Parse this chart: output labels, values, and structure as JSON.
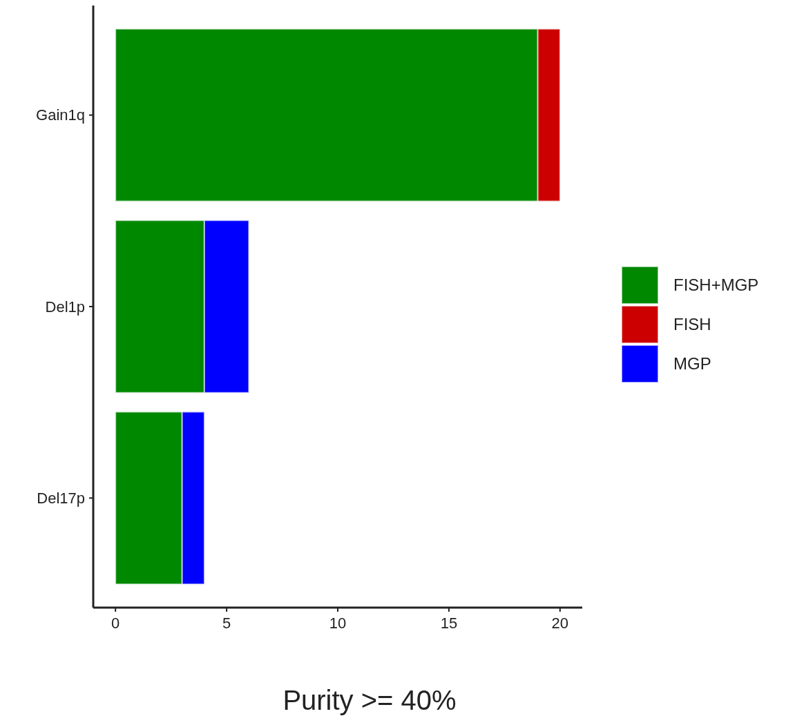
{
  "chart_data": {
    "type": "bar",
    "orientation": "horizontal",
    "stacked": true,
    "categories": [
      "Gain1q",
      "Del1p",
      "Del17p"
    ],
    "series": [
      {
        "name": "FISH+MGP",
        "color": "#008800",
        "values": [
          19,
          4,
          3
        ]
      },
      {
        "name": "FISH",
        "color": "#cc0000",
        "values": [
          1,
          0,
          0
        ]
      },
      {
        "name": "MGP",
        "color": "#0000ff",
        "values": [
          0,
          2,
          1
        ]
      }
    ],
    "xlim": [
      -1,
      21
    ],
    "xticks": [
      0,
      5,
      10,
      15,
      20
    ],
    "xlabel": "Purity >= 40%",
    "legend": "right"
  }
}
